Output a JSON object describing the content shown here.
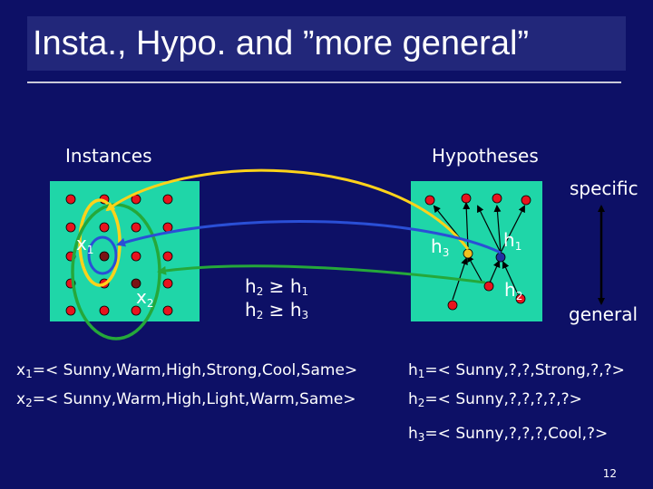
{
  "slide": {
    "title": "Insta., Hypo. and ”more general”",
    "page_number": "12"
  },
  "labels": {
    "instances": "Instances",
    "hypotheses": "Hypotheses",
    "specific": "specific",
    "general": "general",
    "x1": "x",
    "x1_sub": "1",
    "x2": "x",
    "x2_sub": "2",
    "h1": "h",
    "h1_sub": "1",
    "h2": "h",
    "h2_sub": "2",
    "h3": "h",
    "h3_sub": "3"
  },
  "relations": [
    {
      "lhs": "h",
      "lhs_sub": "2",
      "op": " ≥ ",
      "rhs": "h",
      "rhs_sub": "1"
    },
    {
      "lhs": "h",
      "lhs_sub": "2",
      "op": " ≥ ",
      "rhs": "h",
      "rhs_sub": "3"
    }
  ],
  "definitions": {
    "x1": {
      "name": "x",
      "sub": "1",
      "text": "=< Sunny,Warm,High,Strong,Cool,Same>"
    },
    "x2": {
      "name": "x",
      "sub": "2",
      "text": "=< Sunny,Warm,High,Light,Warm,Same>"
    },
    "h1": {
      "name": "h",
      "sub": "1",
      "text": "=< Sunny,?,?,Strong,?,?>"
    },
    "h2": {
      "name": "h",
      "sub": "2",
      "text": "=< Sunny,?,?,?,?,?>"
    },
    "h3": {
      "name": "h",
      "sub": "3",
      "text": "=< Sunny,?,?,?,Cool,?>"
    }
  },
  "colors": {
    "background": "#0d1066",
    "panel": "#1fd6a8",
    "dot": "#e8141e",
    "x_dot": "#7a1414",
    "h3_dot": "#f0c020",
    "h1_dot": "#2030a0",
    "yellow_arrow": "#ffd21a",
    "blue_arrow": "#2a4fd6",
    "green_arrow": "#25a83a"
  }
}
